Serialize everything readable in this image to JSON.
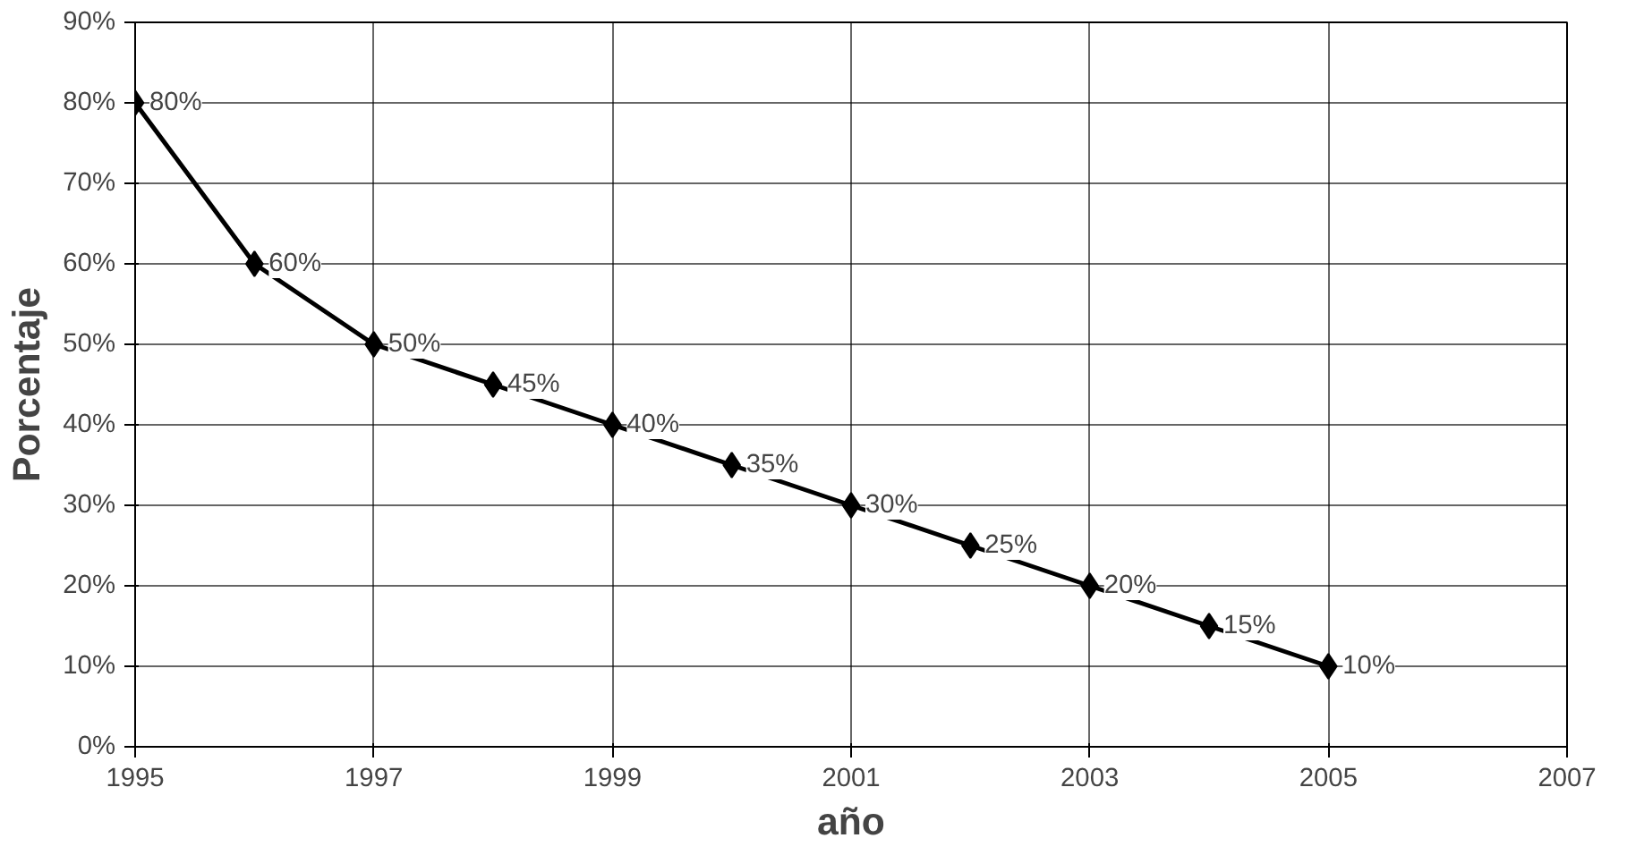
{
  "chart_data": {
    "type": "line",
    "xlabel": "año",
    "ylabel": "Porcentaje",
    "x": [
      1995,
      1996,
      1997,
      1998,
      1999,
      2000,
      2001,
      2002,
      2003,
      2004,
      2005
    ],
    "series": [
      {
        "color": "#000000",
        "values": [
          80,
          60,
          50,
          45,
          40,
          35,
          30,
          25,
          20,
          15,
          10
        ],
        "value_labels": [
          "80%",
          "60%",
          "50%",
          "45%",
          "40%",
          "35%",
          "30%",
          "25%",
          "20%",
          "15%",
          "10%"
        ]
      }
    ],
    "xlim": [
      1995,
      2007
    ],
    "xticks": [
      1995,
      1997,
      1999,
      2001,
      2003,
      2005,
      2007
    ],
    "ylim": [
      0,
      90
    ],
    "yticks": [
      {
        "value": 0,
        "label": "0%"
      },
      {
        "value": 10,
        "label": "10%"
      },
      {
        "value": 20,
        "label": "20%"
      },
      {
        "value": 30,
        "label": "30%"
      },
      {
        "value": 40,
        "label": "40%"
      },
      {
        "value": 50,
        "label": "50%"
      },
      {
        "value": 60,
        "label": "60%"
      },
      {
        "value": 70,
        "label": "70%"
      },
      {
        "value": 80,
        "label": "80%"
      },
      {
        "value": 90,
        "label": "90%"
      }
    ],
    "grid": true,
    "marker": "diamond",
    "line_style": "solid"
  }
}
